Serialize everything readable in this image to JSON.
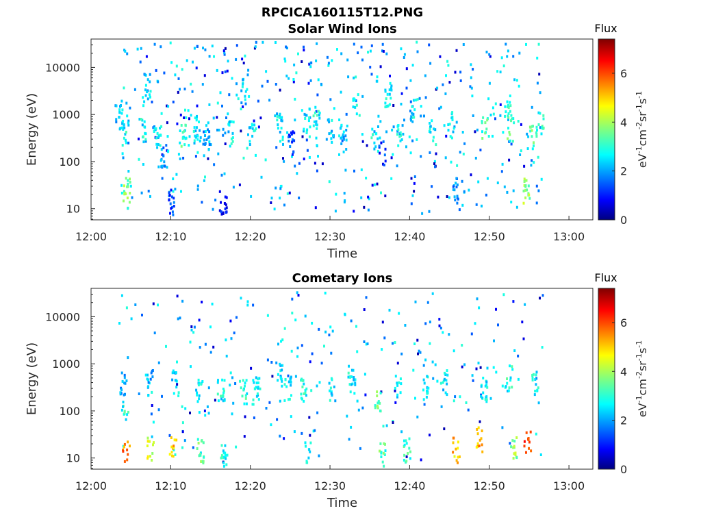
{
  "figure_title": "RPCICA160115T12.PNG",
  "colorbar": {
    "label": "Flux",
    "unit": "eV",
    "unit_parts": [
      "eV",
      "-1",
      "cm",
      "-2",
      "sr",
      "-1",
      "s",
      "-1"
    ],
    "ticks": [
      "0",
      "2",
      "4",
      "6"
    ],
    "range": [
      0,
      7.4
    ],
    "colormap": "jet"
  },
  "chart_data": [
    {
      "type": "heatmap",
      "title": "Solar Wind Ions",
      "xlabel": "Time",
      "ylabel": "Energy (eV)",
      "xticks": [
        "12:00",
        "12:10",
        "12:20",
        "12:30",
        "12:40",
        "12:50",
        "13:00"
      ],
      "yticks": [
        "10",
        "100",
        "1000",
        "10000"
      ],
      "xlim_minutes": [
        0,
        63
      ],
      "ylim_ev": [
        5.8,
        40000
      ],
      "yscale": "log",
      "grid": false,
      "data_time_range_minutes": [
        3.4,
        56.6
      ],
      "clusters": [
        {
          "t": 3.4,
          "e": 900,
          "f": 2.3
        },
        {
          "t": 4.2,
          "e": 400,
          "f": 2.8
        },
        {
          "t": 4.4,
          "e": 25,
          "f": 3.6
        },
        {
          "t": 6.4,
          "e": 500,
          "f": 3.0
        },
        {
          "t": 7.0,
          "e": 4000,
          "f": 2.4
        },
        {
          "t": 8.3,
          "e": 300,
          "f": 2.6
        },
        {
          "t": 9.0,
          "e": 130,
          "f": 2.0
        },
        {
          "t": 10.1,
          "e": 14,
          "f": 1.4
        },
        {
          "t": 11.4,
          "e": 400,
          "f": 3.2
        },
        {
          "t": 13.2,
          "e": 500,
          "f": 2.6
        },
        {
          "t": 14.5,
          "e": 250,
          "f": 2.2
        },
        {
          "t": 16.5,
          "e": 14,
          "f": 1.2
        },
        {
          "t": 17.4,
          "e": 400,
          "f": 2.6
        },
        {
          "t": 19.2,
          "e": 3000,
          "f": 2.4
        },
        {
          "t": 20.2,
          "e": 400,
          "f": 2.7
        },
        {
          "t": 23.6,
          "e": 600,
          "f": 2.6
        },
        {
          "t": 25.0,
          "e": 250,
          "f": 1.6
        },
        {
          "t": 27.0,
          "e": 600,
          "f": 2.6
        },
        {
          "t": 28.2,
          "e": 900,
          "f": 2.8
        },
        {
          "t": 30.0,
          "e": 500,
          "f": 2.5
        },
        {
          "t": 31.6,
          "e": 300,
          "f": 2.4
        },
        {
          "t": 33.2,
          "e": 1500,
          "f": 2.6
        },
        {
          "t": 35.5,
          "e": 300,
          "f": 2.8
        },
        {
          "t": 36.5,
          "e": 150,
          "f": 1.3
        },
        {
          "t": 37.2,
          "e": 2500,
          "f": 2.6
        },
        {
          "t": 38.7,
          "e": 400,
          "f": 2.7
        },
        {
          "t": 40.5,
          "e": 1200,
          "f": 2.6
        },
        {
          "t": 42.8,
          "e": 400,
          "f": 2.8
        },
        {
          "t": 45.0,
          "e": 600,
          "f": 2.6
        },
        {
          "t": 45.7,
          "e": 25,
          "f": 2.0
        },
        {
          "t": 49.3,
          "e": 500,
          "f": 3.2
        },
        {
          "t": 52.5,
          "e": 500,
          "f": 3.4
        },
        {
          "t": 52.2,
          "e": 1500,
          "f": 3.0
        },
        {
          "t": 54.6,
          "e": 25,
          "f": 3.8
        },
        {
          "t": 55.4,
          "e": 400,
          "f": 3.5
        },
        {
          "t": 56.3,
          "e": 600,
          "f": 3.0
        }
      ]
    },
    {
      "type": "heatmap",
      "title": "Cometary Ions",
      "xlabel": "Time",
      "ylabel": "Energy (eV)",
      "xticks": [
        "12:00",
        "12:10",
        "12:20",
        "12:30",
        "12:40",
        "12:50",
        "13:00"
      ],
      "yticks": [
        "10",
        "100",
        "1000",
        "10000"
      ],
      "xlim_minutes": [
        0,
        63
      ],
      "ylim_ev": [
        5.8,
        40000
      ],
      "yscale": "log",
      "grid": false,
      "data_time_range_minutes": [
        3.4,
        56.6
      ],
      "clusters": [
        {
          "t": 3.9,
          "e": 400,
          "f": 2.0
        },
        {
          "t": 4.3,
          "e": 15,
          "f": 5.6
        },
        {
          "t": 4.2,
          "e": 120,
          "f": 3.0
        },
        {
          "t": 7.2,
          "e": 400,
          "f": 2.2
        },
        {
          "t": 7.3,
          "e": 15,
          "f": 4.2
        },
        {
          "t": 10.2,
          "e": 15,
          "f": 5.0
        },
        {
          "t": 10.5,
          "e": 400,
          "f": 2.4
        },
        {
          "t": 13.5,
          "e": 300,
          "f": 2.6
        },
        {
          "t": 13.6,
          "e": 15,
          "f": 3.6
        },
        {
          "t": 16.2,
          "e": 300,
          "f": 2.8
        },
        {
          "t": 16.6,
          "e": 12,
          "f": 3.0
        },
        {
          "t": 19.0,
          "e": 250,
          "f": 3.0
        },
        {
          "t": 20.6,
          "e": 300,
          "f": 2.6
        },
        {
          "t": 23.5,
          "e": 600,
          "f": 2.4
        },
        {
          "t": 24.6,
          "e": 300,
          "f": 2.8
        },
        {
          "t": 26.6,
          "e": 300,
          "f": 2.8
        },
        {
          "t": 27.2,
          "e": 12,
          "f": 3.0
        },
        {
          "t": 30.2,
          "e": 300,
          "f": 2.6
        },
        {
          "t": 32.6,
          "e": 400,
          "f": 2.7
        },
        {
          "t": 35.8,
          "e": 150,
          "f": 3.6
        },
        {
          "t": 36.4,
          "e": 12,
          "f": 3.4
        },
        {
          "t": 38.5,
          "e": 300,
          "f": 2.8
        },
        {
          "t": 39.6,
          "e": 15,
          "f": 3.2
        },
        {
          "t": 42.0,
          "e": 300,
          "f": 2.8
        },
        {
          "t": 44.2,
          "e": 400,
          "f": 2.6
        },
        {
          "t": 45.7,
          "e": 15,
          "f": 5.0
        },
        {
          "t": 48.6,
          "e": 25,
          "f": 5.2
        },
        {
          "t": 49.2,
          "e": 300,
          "f": 2.6
        },
        {
          "t": 52.3,
          "e": 500,
          "f": 3.0
        },
        {
          "t": 53.0,
          "e": 15,
          "f": 3.8
        },
        {
          "t": 54.7,
          "e": 20,
          "f": 6.0
        },
        {
          "t": 55.6,
          "e": 400,
          "f": 2.8
        }
      ]
    }
  ]
}
